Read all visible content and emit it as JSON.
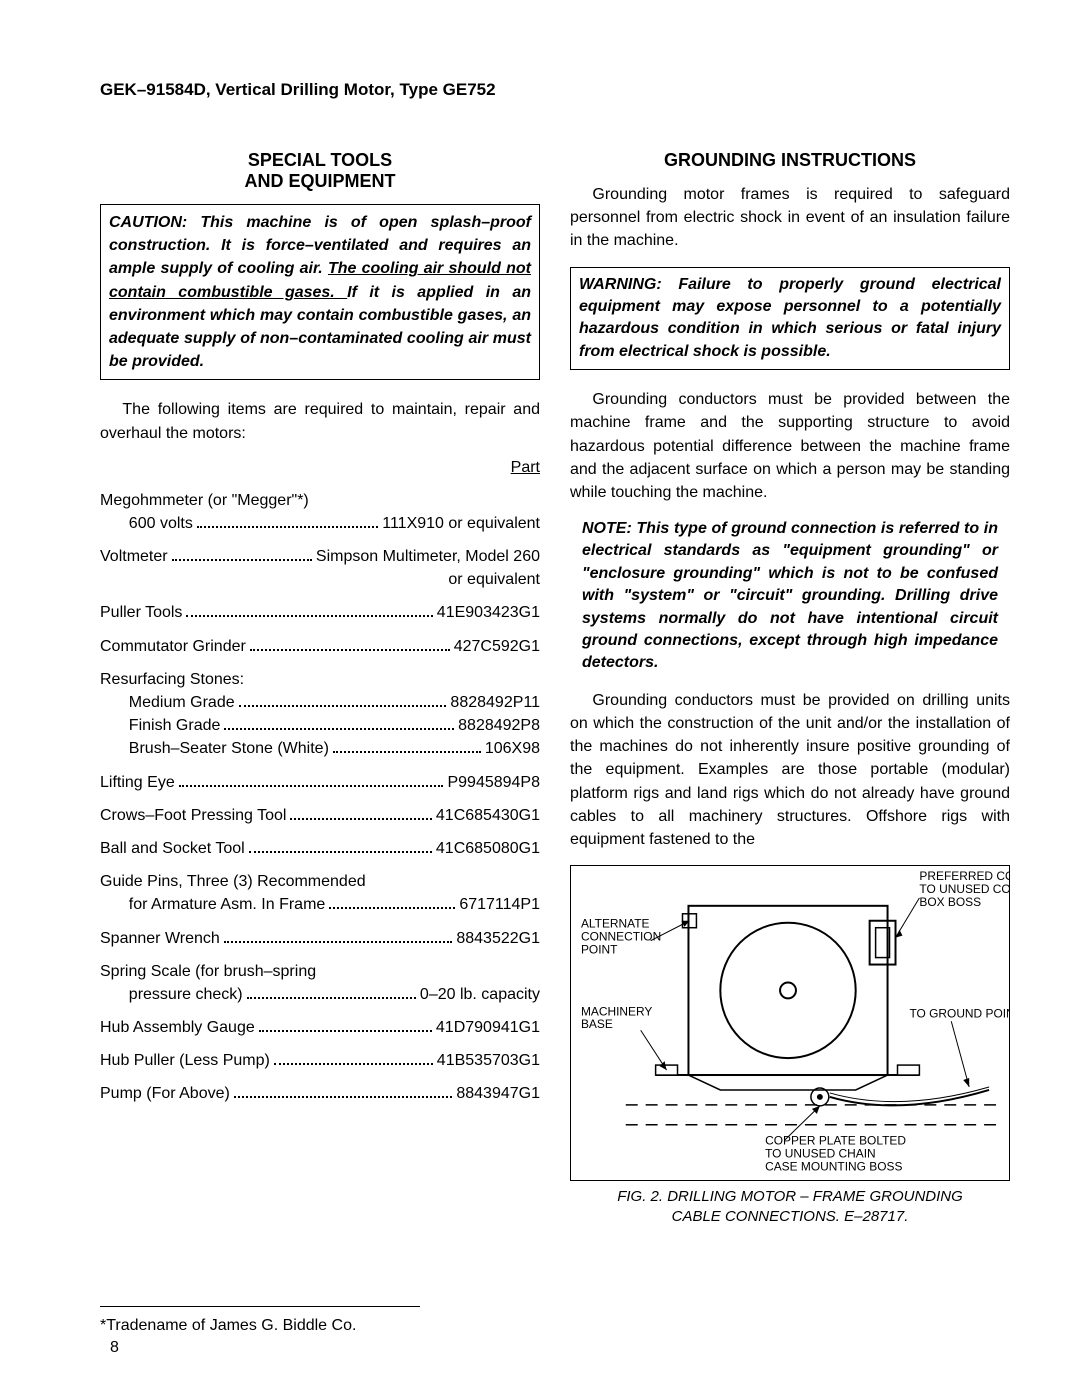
{
  "header": "GEK–91584D, Vertical Drilling Motor, Type GE752",
  "left": {
    "title1": "SPECIAL TOOLS",
    "title2": "AND EQUIPMENT",
    "caution_a": "CAUTION: This machine is of open splash–proof construction. It is force–ventilated and requires an ample supply of cooling air. ",
    "caution_u": "The cooling air should not contain combustible gases. ",
    "caution_b": "If it is applied in an environment which may contain combustible gases, an adequate supply of non–contaminated cooling air must be provided.",
    "intro": "The following items are required to maintain, repair and overhaul the motors:",
    "part_label": "Part",
    "items": [
      {
        "lines": [
          {
            "label": "Megohmmeter (or \"Megger\"*)",
            "value": "",
            "indent": false,
            "nodots": true
          },
          {
            "label": "600 volts",
            "value": "111X910 or equivalent",
            "indent": true
          }
        ]
      },
      {
        "lines": [
          {
            "label": "Voltmeter",
            "value": "Simpson Multimeter, Model 260",
            "indent": false
          },
          {
            "label": "",
            "value": "or equivalent",
            "indent": false,
            "rightonly": true
          }
        ]
      },
      {
        "lines": [
          {
            "label": "Puller Tools",
            "value": "41E903423G1",
            "indent": false
          }
        ]
      },
      {
        "lines": [
          {
            "label": "Commutator Grinder",
            "value": "427C592G1",
            "indent": false
          }
        ]
      },
      {
        "lines": [
          {
            "label": "Resurfacing Stones:",
            "value": "",
            "indent": false,
            "nodots": true
          },
          {
            "label": "Medium Grade",
            "value": "8828492P11",
            "indent": true
          },
          {
            "label": "Finish Grade",
            "value": "8828492P8",
            "indent": true
          },
          {
            "label": "Brush–Seater Stone (White)",
            "value": "106X98",
            "indent": true
          }
        ]
      },
      {
        "lines": [
          {
            "label": "Lifting Eye",
            "value": "P9945894P8",
            "indent": false
          }
        ]
      },
      {
        "lines": [
          {
            "label": "Crows–Foot Pressing Tool",
            "value": "41C685430G1",
            "indent": false
          }
        ]
      },
      {
        "lines": [
          {
            "label": "Ball and Socket Tool",
            "value": "41C685080G1",
            "indent": false
          }
        ]
      },
      {
        "lines": [
          {
            "label": "Guide Pins, Three (3) Recommended",
            "value": "",
            "indent": false,
            "nodots": true
          },
          {
            "label": "for Armature Asm. In Frame",
            "value": "6717114P1",
            "indent": true
          }
        ]
      },
      {
        "lines": [
          {
            "label": "Spanner Wrench",
            "value": "8843522G1",
            "indent": false
          }
        ]
      },
      {
        "lines": [
          {
            "label": "Spring Scale (for brush–spring",
            "value": "",
            "indent": false,
            "nodots": true
          },
          {
            "label": "pressure check)",
            "value": "0–20 lb. capacity",
            "indent": true
          }
        ]
      },
      {
        "lines": [
          {
            "label": "Hub Assembly Gauge",
            "value": "41D790941G1",
            "indent": false
          }
        ]
      },
      {
        "lines": [
          {
            "label": "Hub Puller (Less Pump)",
            "value": "41B535703G1",
            "indent": false
          }
        ]
      },
      {
        "lines": [
          {
            "label": "Pump (For Above)",
            "value": "8843947G1",
            "indent": false
          }
        ]
      }
    ],
    "footnote": "*Tradename of James G. Biddle Co."
  },
  "right": {
    "title": "GROUNDING INSTRUCTIONS",
    "p1": "Grounding motor frames is required to safeguard personnel from electric shock in event of an insulation failure in the machine.",
    "warning": "WARNING: Failure to properly ground electrical equipment may expose personnel to a potentially hazardous condition in which serious or fatal injury from electrical shock is possible.",
    "p2": "Grounding conductors must be provided between the machine frame and the supporting structure to avoid hazardous potential difference between the machine frame and the adjacent surface on which a person may be standing while touching the machine.",
    "note": "NOTE: This type of ground connection is referred to in electrical standards as \"equipment grounding\" or \"enclosure grounding\" which is not to be confused with \"system\" or \"circuit\" grounding. Drilling drive systems normally do not have intentional circuit ground connections, except through high impedance detectors.",
    "p3": "Grounding conductors must be provided on drilling units on which the construction of the unit and/or the installation of the machines do not inherently insure positive grounding of the equipment. Examples are those portable (modular) platform rigs and land rigs which do not already have ground cables to all machinery structures. Offshore rigs with equipment fastened to the",
    "fig": {
      "labels": {
        "pref1": "PREFERRED CONNECTION -",
        "pref2": "TO UNUSED CONNECTION",
        "pref3": "BOX BOSS",
        "alt1": "ALTERNATE",
        "alt2": "CONNECTION",
        "alt3": "POINT",
        "mach1": "MACHINERY",
        "mach2": "BASE",
        "gnd": "TO GROUND POINT",
        "cop1": "COPPER PLATE BOLTED",
        "cop2": "TO UNUSED CHAIN",
        "cop3": "CASE MOUNTING BOSS"
      },
      "caption1": "FIG. 2. DRILLING MOTOR – FRAME GROUNDING",
      "caption2": "CABLE CONNECTIONS. E–28717."
    }
  },
  "page": "8"
}
